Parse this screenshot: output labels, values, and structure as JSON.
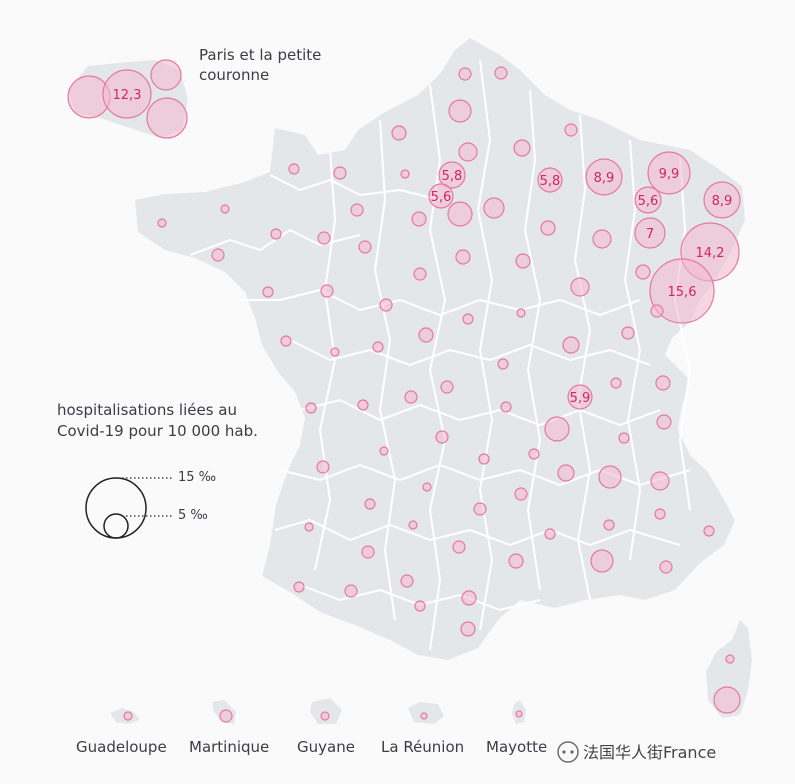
{
  "paris_label": "Paris et la petite couronne",
  "legend": {
    "title_line1": "hospitalisations liées au",
    "title_line2": "Covid-19 pour 10 000 hab.",
    "big_label": "15 ‰",
    "small_label": "5 ‰"
  },
  "territories": [
    {
      "name": "Guadeloupe",
      "label": "Guadeloupe"
    },
    {
      "name": "Martinique",
      "label": "Martinique"
    },
    {
      "name": "Guyane",
      "label": "Guyane"
    },
    {
      "name": "La Réunion",
      "label": "La Réunion"
    },
    {
      "name": "Mayotte",
      "label": "Mayotte"
    }
  ],
  "watermark": "法国华人街France",
  "colors": {
    "land": "#e4e7ea",
    "border": "#ffffff",
    "bubble_fill": "#f4b8cd",
    "bubble_stroke": "#e5799c",
    "label": "#d4245e"
  },
  "labeled_values": {
    "paris": "12,3",
    "oise": "5,8",
    "val_doise": "5,6",
    "aisne": "5,8",
    "moselle": "8,9",
    "moselle_east": "9,9",
    "bas_rhin_north": "8,9",
    "meurthe": "5,6",
    "vosges": "7",
    "bas_rhin": "14,2",
    "haut_rhin": "15,6",
    "saone_loire": "5,9"
  }
}
